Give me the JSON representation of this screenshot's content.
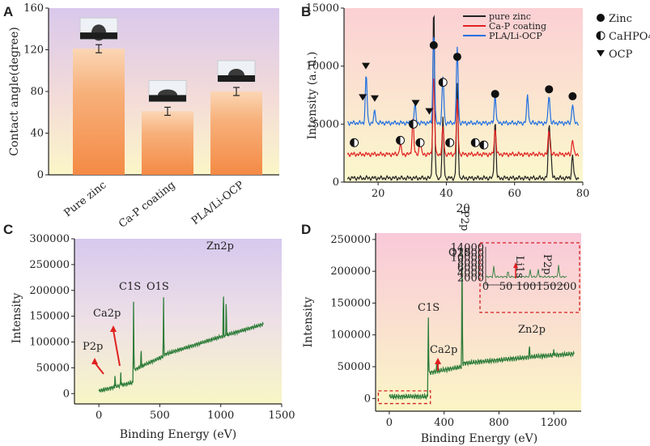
{
  "colors": {
    "black": "#222222",
    "red": "#e02020",
    "blue": "#1f6fe0",
    "green": "#2e7d3a",
    "bar": "#f5a56a",
    "red_dash": "#d32020"
  },
  "chart_data": [
    {
      "id": "A",
      "type": "bar",
      "label": "A",
      "categories": [
        "Pure zinc",
        "Ca-P coating",
        "PLA/Li-OCP"
      ],
      "values": [
        121,
        61,
        80
      ],
      "ylabel": "Contact angle(degree)",
      "ylim": [
        0,
        160
      ],
      "yticks": [
        0,
        40,
        80,
        120,
        160
      ]
    },
    {
      "id": "B",
      "type": "line",
      "label": "B",
      "xlabel": "2θ",
      "ylabel": "Intensity (a. u.)",
      "xlim": [
        10,
        80
      ],
      "ylim": [
        0,
        15000
      ],
      "xticks": [
        20,
        40,
        60,
        80
      ],
      "yticks": [
        0,
        5000,
        10000,
        15000
      ],
      "series": [
        {
          "name": "pure zinc",
          "color": "#222222",
          "base": 350,
          "peaks": [
            [
              36.3,
              15000
            ],
            [
              39.0,
              5100
            ],
            [
              43.2,
              8000
            ],
            [
              54.3,
              5000
            ],
            [
              70.1,
              4400
            ],
            [
              70.6,
              2200
            ],
            [
              77.0,
              2000
            ]
          ]
        },
        {
          "name": "Ca-P coating",
          "color": "#e02020",
          "base": 2400,
          "peaks": [
            [
              26.5,
              900
            ],
            [
              30.2,
              3000
            ],
            [
              32.3,
              1300
            ],
            [
              36.3,
              7000
            ],
            [
              39.0,
              2300
            ],
            [
              43.2,
              4600
            ],
            [
              54.3,
              2200
            ],
            [
              70.1,
              2200
            ],
            [
              77.0,
              1300
            ]
          ]
        },
        {
          "name": "PLA/Li-OCP",
          "color": "#1f6fe0",
          "base": 5100,
          "peaks": [
            [
              16.5,
              4200
            ],
            [
              19.0,
              1000
            ],
            [
              30.8,
              1600
            ],
            [
              36.3,
              8000
            ],
            [
              39.0,
              4000
            ],
            [
              43.2,
              6500
            ],
            [
              54.3,
              2400
            ],
            [
              63.8,
              2400
            ],
            [
              70.1,
              2500
            ],
            [
              77.0,
              1700
            ]
          ]
        }
      ],
      "legend_markers": [
        {
          "name": "Zinc",
          "symbol": "filled-circle"
        },
        {
          "name": "CaHPO4",
          "symbol": "half-circle"
        },
        {
          "name": "OCP",
          "symbol": "down-triangle"
        }
      ],
      "markers": {
        "zinc": [
          [
            36.3,
            11800
          ],
          [
            43.2,
            10800
          ],
          [
            54.3,
            7600
          ],
          [
            70.1,
            8000
          ],
          [
            77.0,
            7400
          ]
        ],
        "cahpo4": [
          [
            13.0,
            3400
          ],
          [
            26.5,
            3600
          ],
          [
            30.3,
            5000
          ],
          [
            32.3,
            3400
          ],
          [
            39.0,
            8600
          ],
          [
            41.0,
            3400
          ],
          [
            48.5,
            3400
          ],
          [
            51.0,
            3200
          ]
        ],
        "ocp": [
          [
            16.4,
            10000
          ],
          [
            15.5,
            7300
          ],
          [
            19.0,
            7200
          ],
          [
            31.0,
            6800
          ],
          [
            35.0,
            6100
          ]
        ]
      }
    },
    {
      "id": "C",
      "type": "line",
      "label": "C",
      "xlabel": "Binding Energy (eV)",
      "ylabel": "Intensity",
      "xlim": [
        -200,
        1500
      ],
      "ylim": [
        -20000,
        300000
      ],
      "xticks": [
        0,
        500,
        1000,
        1500
      ],
      "yticks": [
        0,
        50000,
        100000,
        150000,
        200000,
        250000,
        300000
      ],
      "series": [
        {
          "name": "XPS survey",
          "color": "#2e7d3a"
        }
      ],
      "annotations": [
        {
          "text": "P2p",
          "x": 133,
          "y": 80000
        },
        {
          "text": "Ca2p",
          "x": 347,
          "y": 130000
        },
        {
          "text": "C1S",
          "x": 285,
          "y": 175000
        },
        {
          "text": "O1S",
          "x": 531,
          "y": 175000
        },
        {
          "text": "Zn2p",
          "x": 1022,
          "y": 233000
        }
      ]
    },
    {
      "id": "D",
      "type": "line",
      "label": "D",
      "xlabel": "Binding Energy (eV)",
      "ylabel": "Intensity",
      "xlim": [
        -100,
        1400
      ],
      "ylim": [
        -20000,
        260000
      ],
      "xticks": [
        0,
        400,
        800,
        1200
      ],
      "yticks": [
        0,
        50000,
        100000,
        150000,
        200000,
        250000
      ],
      "series": [
        {
          "name": "XPS survey",
          "color": "#2e7d3a"
        }
      ],
      "annotations": [
        {
          "text": "O1S",
          "x": 531,
          "y": 230000
        },
        {
          "text": "C1S",
          "x": 285,
          "y": 130000
        },
        {
          "text": "Ca2p",
          "x": 347,
          "y": 40000
        },
        {
          "text": "Zn2p",
          "x": 1022,
          "y": 88000
        },
        {
          "text": "P2p",
          "x": 0,
          "y": 0
        }
      ],
      "inset": {
        "xlim": [
          0,
          200
        ],
        "ylim": [
          0,
          15000
        ],
        "xticks": [
          0,
          50,
          100,
          150,
          200
        ],
        "yticks": [
          2000,
          4000,
          6000,
          8000,
          10000,
          12000,
          14000
        ],
        "labels": [
          "Li1s",
          "P2p"
        ]
      }
    }
  ]
}
